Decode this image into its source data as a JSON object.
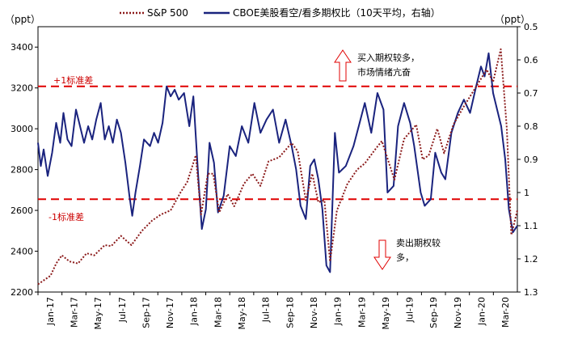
{
  "chart_data": {
    "type": "line",
    "left_axis_unit": "（ppt）",
    "right_axis_unit": "（ppt）",
    "x_ticks": [
      "Jan-17",
      "Mar-17",
      "May-17",
      "Jul-17",
      "Sep-17",
      "Nov-17",
      "Jan-18",
      "Mar-18",
      "May-18",
      "Jul-18",
      "Sep-18",
      "Nov-18",
      "Jan-19",
      "Mar-19",
      "May-19",
      "Jul-19",
      "Sep-19",
      "Nov-19",
      "Jan-20",
      "Mar-20"
    ],
    "x_range": [
      "2017-01-01",
      "2020-03-31"
    ],
    "y_left": {
      "min": 2200,
      "max": 3500,
      "ticks": [
        2200,
        2400,
        2600,
        2800,
        3000,
        3200,
        3400
      ]
    },
    "y_right": {
      "min": 0.5,
      "max": 1.3,
      "inverted": true,
      "ticks": [
        "0.5",
        "0.6",
        "0.7",
        "0.8",
        "0.9",
        "1",
        "1.1",
        "1.2",
        "1.3"
      ]
    },
    "legend": [
      {
        "label": "S&P 500",
        "style": "dotted",
        "color": "#8B1A1A"
      },
      {
        "label": "CBOE美股看空/看多期权比（10天平均，右轴）",
        "style": "solid",
        "color": "#1a237e"
      }
    ],
    "thresholds": [
      {
        "label": "+1标准差",
        "value_right_axis": 0.68,
        "color": "#e00000"
      },
      {
        "label": "-1标准差",
        "value_right_axis": 1.02,
        "color": "#e00000"
      }
    ],
    "annotations": [
      {
        "lines": [
          "买入期权较多，",
          "市场情绪亢奋"
        ],
        "arrow": "up"
      },
      {
        "lines": [
          "卖出期权较",
          "多，"
        ],
        "arrow": "down"
      }
    ],
    "series": [
      {
        "name": "S&P 500",
        "axis": "left",
        "points": [
          [
            "2017-01-01",
            2238
          ],
          [
            "2017-02-01",
            2280
          ],
          [
            "2017-02-15",
            2340
          ],
          [
            "2017-03-01",
            2380
          ],
          [
            "2017-03-20",
            2350
          ],
          [
            "2017-04-10",
            2340
          ],
          [
            "2017-05-01",
            2390
          ],
          [
            "2017-05-20",
            2380
          ],
          [
            "2017-06-15",
            2430
          ],
          [
            "2017-07-01",
            2425
          ],
          [
            "2017-07-25",
            2475
          ],
          [
            "2017-08-20",
            2430
          ],
          [
            "2017-09-15",
            2500
          ],
          [
            "2017-10-10",
            2550
          ],
          [
            "2017-11-01",
            2580
          ],
          [
            "2017-11-25",
            2600
          ],
          [
            "2017-12-20",
            2690
          ],
          [
            "2018-01-05",
            2740
          ],
          [
            "2018-01-26",
            2870
          ],
          [
            "2018-02-08",
            2580
          ],
          [
            "2018-02-25",
            2780
          ],
          [
            "2018-03-10",
            2780
          ],
          [
            "2018-03-25",
            2590
          ],
          [
            "2018-04-15",
            2680
          ],
          [
            "2018-05-01",
            2620
          ],
          [
            "2018-05-25",
            2730
          ],
          [
            "2018-06-15",
            2780
          ],
          [
            "2018-07-05",
            2720
          ],
          [
            "2018-07-25",
            2840
          ],
          [
            "2018-08-20",
            2860
          ],
          [
            "2018-09-20",
            2930
          ],
          [
            "2018-10-05",
            2890
          ],
          [
            "2018-10-25",
            2650
          ],
          [
            "2018-11-10",
            2780
          ],
          [
            "2018-11-25",
            2640
          ],
          [
            "2018-12-10",
            2650
          ],
          [
            "2018-12-24",
            2350
          ],
          [
            "2019-01-10",
            2600
          ],
          [
            "2019-02-05",
            2730
          ],
          [
            "2019-03-01",
            2800
          ],
          [
            "2019-03-20",
            2830
          ],
          [
            "2019-04-15",
            2900
          ],
          [
            "2019-05-01",
            2940
          ],
          [
            "2019-06-01",
            2750
          ],
          [
            "2019-06-25",
            2950
          ],
          [
            "2019-07-25",
            3020
          ],
          [
            "2019-08-10",
            2850
          ],
          [
            "2019-08-25",
            2870
          ],
          [
            "2019-09-15",
            3000
          ],
          [
            "2019-10-02",
            2880
          ],
          [
            "2019-10-25",
            3020
          ],
          [
            "2019-11-20",
            3110
          ],
          [
            "2019-12-15",
            3190
          ],
          [
            "2020-01-15",
            3290
          ],
          [
            "2020-01-31",
            3230
          ],
          [
            "2020-02-19",
            3390
          ],
          [
            "2020-03-05",
            3000
          ],
          [
            "2020-03-16",
            2480
          ],
          [
            "2020-03-31",
            2600
          ]
        ]
      },
      {
        "name": "CBOE put/call ratio",
        "axis": "right",
        "points": [
          [
            "2017-01-01",
            0.85
          ],
          [
            "2017-01-08",
            0.92
          ],
          [
            "2017-01-15",
            0.87
          ],
          [
            "2017-01-25",
            0.95
          ],
          [
            "2017-02-05",
            0.88
          ],
          [
            "2017-02-15",
            0.79
          ],
          [
            "2017-02-25",
            0.85
          ],
          [
            "2017-03-05",
            0.76
          ],
          [
            "2017-03-15",
            0.84
          ],
          [
            "2017-03-25",
            0.86
          ],
          [
            "2017-04-05",
            0.75
          ],
          [
            "2017-04-15",
            0.8
          ],
          [
            "2017-04-25",
            0.85
          ],
          [
            "2017-05-05",
            0.8
          ],
          [
            "2017-05-15",
            0.84
          ],
          [
            "2017-05-25",
            0.78
          ],
          [
            "2017-06-05",
            0.73
          ],
          [
            "2017-06-15",
            0.84
          ],
          [
            "2017-06-25",
            0.8
          ],
          [
            "2017-07-05",
            0.85
          ],
          [
            "2017-07-15",
            0.78
          ],
          [
            "2017-07-25",
            0.82
          ],
          [
            "2017-08-05",
            0.91
          ],
          [
            "2017-08-15",
            1.01
          ],
          [
            "2017-08-22",
            1.07
          ],
          [
            "2017-08-30",
            1.0
          ],
          [
            "2017-09-10",
            0.92
          ],
          [
            "2017-09-20",
            0.84
          ],
          [
            "2017-10-05",
            0.86
          ],
          [
            "2017-10-15",
            0.82
          ],
          [
            "2017-10-25",
            0.85
          ],
          [
            "2017-11-05",
            0.79
          ],
          [
            "2017-11-15",
            0.68
          ],
          [
            "2017-11-25",
            0.71
          ],
          [
            "2017-12-05",
            0.69
          ],
          [
            "2017-12-15",
            0.72
          ],
          [
            "2017-12-28",
            0.7
          ],
          [
            "2018-01-10",
            0.8
          ],
          [
            "2018-01-20",
            0.71
          ],
          [
            "2018-02-01",
            0.95
          ],
          [
            "2018-02-10",
            1.11
          ],
          [
            "2018-02-20",
            1.05
          ],
          [
            "2018-03-01",
            0.85
          ],
          [
            "2018-03-12",
            0.91
          ],
          [
            "2018-03-22",
            1.06
          ],
          [
            "2018-04-05",
            1.01
          ],
          [
            "2018-04-20",
            0.86
          ],
          [
            "2018-05-05",
            0.89
          ],
          [
            "2018-05-20",
            0.8
          ],
          [
            "2018-06-05",
            0.85
          ],
          [
            "2018-06-20",
            0.73
          ],
          [
            "2018-07-05",
            0.82
          ],
          [
            "2018-07-20",
            0.78
          ],
          [
            "2018-08-05",
            0.75
          ],
          [
            "2018-08-20",
            0.85
          ],
          [
            "2018-09-05",
            0.78
          ],
          [
            "2018-09-20",
            0.86
          ],
          [
            "2018-10-01",
            0.93
          ],
          [
            "2018-10-12",
            1.04
          ],
          [
            "2018-10-25",
            1.08
          ],
          [
            "2018-11-05",
            0.92
          ],
          [
            "2018-11-15",
            0.9
          ],
          [
            "2018-11-25",
            0.96
          ],
          [
            "2018-12-05",
            1.05
          ],
          [
            "2018-12-15",
            1.22
          ],
          [
            "2018-12-24",
            1.24
          ],
          [
            "2019-01-05",
            0.82
          ],
          [
            "2019-01-15",
            0.94
          ],
          [
            "2019-02-01",
            0.92
          ],
          [
            "2019-02-20",
            0.86
          ],
          [
            "2019-03-05",
            0.8
          ],
          [
            "2019-03-20",
            0.73
          ],
          [
            "2019-04-05",
            0.82
          ],
          [
            "2019-04-20",
            0.7
          ],
          [
            "2019-05-05",
            0.75
          ],
          [
            "2019-05-15",
            1.0
          ],
          [
            "2019-05-30",
            0.98
          ],
          [
            "2019-06-10",
            0.8
          ],
          [
            "2019-06-25",
            0.73
          ],
          [
            "2019-07-10",
            0.79
          ],
          [
            "2019-07-20",
            0.86
          ],
          [
            "2019-08-05",
            1.0
          ],
          [
            "2019-08-15",
            1.04
          ],
          [
            "2019-08-30",
            1.02
          ],
          [
            "2019-09-10",
            0.88
          ],
          [
            "2019-09-25",
            0.94
          ],
          [
            "2019-10-05",
            0.96
          ],
          [
            "2019-10-20",
            0.82
          ],
          [
            "2019-11-05",
            0.76
          ],
          [
            "2019-11-20",
            0.72
          ],
          [
            "2019-12-05",
            0.76
          ],
          [
            "2019-12-20",
            0.68
          ],
          [
            "2020-01-01",
            0.62
          ],
          [
            "2020-01-10",
            0.65
          ],
          [
            "2020-01-20",
            0.58
          ],
          [
            "2020-01-31",
            0.7
          ],
          [
            "2020-02-10",
            0.75
          ],
          [
            "2020-02-20",
            0.8
          ],
          [
            "2020-03-01",
            0.9
          ],
          [
            "2020-03-10",
            1.05
          ],
          [
            "2020-03-20",
            1.12
          ],
          [
            "2020-03-31",
            1.1
          ]
        ]
      }
    ]
  }
}
